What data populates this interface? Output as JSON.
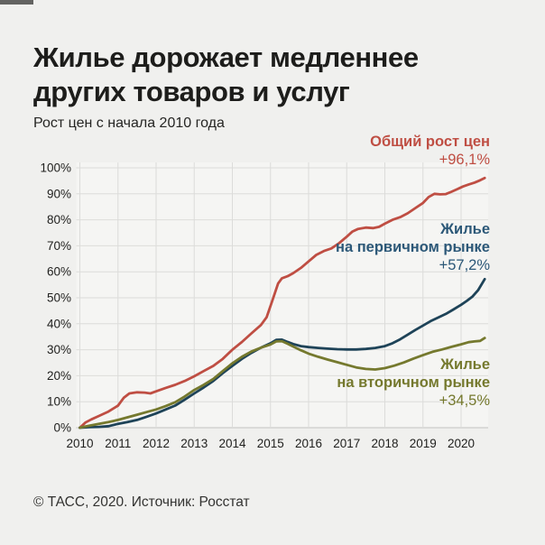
{
  "page": {
    "title_line1": "Жилье дорожает медленнее",
    "title_line2": "других товаров и услуг",
    "subtitle": "Рост цен с начала 2010 года",
    "footer": "© ТАСС, 2020. Источник: Росстат"
  },
  "colors": {
    "background": "#f0f0ee",
    "plot_background": "#f5f5f3",
    "gridline": "#dcdcda",
    "axis_line": "#c2c2c0",
    "tick_text": "#1f1f1d",
    "title_text": "#1d1d1b",
    "overall": "#bf4e43",
    "primary_line": "#1e4358",
    "primary_text": "#2c5878",
    "secondary": "#75792e"
  },
  "legend": {
    "overall": {
      "title": "Общий рост цен",
      "value": "+96,1%"
    },
    "primary": {
      "line1": "Жилье",
      "line2": "на первичном рынке",
      "value": "+57,2%"
    },
    "secondary": {
      "line1": "Жилье",
      "line2": "на вторичном рынке",
      "value": "+34,5%"
    }
  },
  "chart_data": {
    "type": "line",
    "title": "Рост цен с начала 2010 года",
    "xlabel": "",
    "ylabel": "",
    "x_range": [
      2010,
      2020.8
    ],
    "ylim": [
      0,
      100
    ],
    "grid": true,
    "legend_position": "right-inside",
    "x_ticks": [
      2010,
      2011,
      2012,
      2013,
      2014,
      2015,
      2016,
      2017,
      2018,
      2019,
      2020
    ],
    "y_ticks": [
      0,
      10,
      20,
      30,
      40,
      50,
      60,
      70,
      80,
      90,
      100
    ],
    "y_tick_suffix": "%",
    "series": [
      {
        "id": "overall",
        "name": "Общий рост цен",
        "final_value_label": "+96,1%",
        "final_value": 96.1,
        "color": "#bf4e43",
        "points": [
          [
            2010.0,
            0
          ],
          [
            2010.15,
            2.0
          ],
          [
            2010.3,
            3.2
          ],
          [
            2010.5,
            4.5
          ],
          [
            2010.75,
            6.2
          ],
          [
            2011.0,
            8.5
          ],
          [
            2011.15,
            11.5
          ],
          [
            2011.3,
            13.2
          ],
          [
            2011.5,
            13.6
          ],
          [
            2011.7,
            13.5
          ],
          [
            2011.85,
            13.2
          ],
          [
            2012.0,
            14.0
          ],
          [
            2012.25,
            15.3
          ],
          [
            2012.5,
            16.5
          ],
          [
            2012.75,
            18.0
          ],
          [
            2013.0,
            19.8
          ],
          [
            2013.25,
            21.8
          ],
          [
            2013.5,
            23.8
          ],
          [
            2013.75,
            26.5
          ],
          [
            2014.0,
            30.0
          ],
          [
            2014.25,
            33.0
          ],
          [
            2014.5,
            36.3
          ],
          [
            2014.75,
            39.5
          ],
          [
            2014.9,
            42.5
          ],
          [
            2015.05,
            49.0
          ],
          [
            2015.2,
            55.5
          ],
          [
            2015.3,
            57.5
          ],
          [
            2015.45,
            58.3
          ],
          [
            2015.6,
            59.5
          ],
          [
            2015.8,
            61.5
          ],
          [
            2016.0,
            64.0
          ],
          [
            2016.2,
            66.5
          ],
          [
            2016.4,
            68.0
          ],
          [
            2016.6,
            69.0
          ],
          [
            2016.8,
            71.0
          ],
          [
            2017.0,
            73.5
          ],
          [
            2017.15,
            75.5
          ],
          [
            2017.3,
            76.5
          ],
          [
            2017.5,
            77.0
          ],
          [
            2017.7,
            76.8
          ],
          [
            2017.85,
            77.3
          ],
          [
            2018.0,
            78.5
          ],
          [
            2018.2,
            80.0
          ],
          [
            2018.4,
            81.0
          ],
          [
            2018.6,
            82.5
          ],
          [
            2018.8,
            84.5
          ],
          [
            2019.0,
            86.5
          ],
          [
            2019.15,
            88.8
          ],
          [
            2019.3,
            90.0
          ],
          [
            2019.45,
            89.8
          ],
          [
            2019.6,
            89.9
          ],
          [
            2019.75,
            90.8
          ],
          [
            2019.9,
            91.8
          ],
          [
            2020.05,
            92.8
          ],
          [
            2020.2,
            93.6
          ],
          [
            2020.35,
            94.3
          ],
          [
            2020.5,
            95.2
          ],
          [
            2020.62,
            96.1
          ]
        ]
      },
      {
        "id": "primary",
        "name": "Жилье на первичном рынке",
        "final_value_label": "+57,2%",
        "final_value": 57.2,
        "color": "#1e4358",
        "points": [
          [
            2010.0,
            0
          ],
          [
            2010.25,
            0.2
          ],
          [
            2010.5,
            0.3
          ],
          [
            2010.75,
            0.6
          ],
          [
            2011.0,
            1.5
          ],
          [
            2011.25,
            2.2
          ],
          [
            2011.5,
            3.0
          ],
          [
            2011.75,
            4.2
          ],
          [
            2012.0,
            5.5
          ],
          [
            2012.25,
            7.0
          ],
          [
            2012.5,
            8.5
          ],
          [
            2012.75,
            10.8
          ],
          [
            2013.0,
            13.2
          ],
          [
            2013.25,
            15.5
          ],
          [
            2013.5,
            18.0
          ],
          [
            2013.75,
            21.0
          ],
          [
            2014.0,
            23.8
          ],
          [
            2014.25,
            26.5
          ],
          [
            2014.5,
            28.8
          ],
          [
            2014.75,
            30.8
          ],
          [
            2015.0,
            32.5
          ],
          [
            2015.15,
            33.8
          ],
          [
            2015.3,
            33.9
          ],
          [
            2015.45,
            33.0
          ],
          [
            2015.6,
            32.2
          ],
          [
            2015.8,
            31.4
          ],
          [
            2016.0,
            31.0
          ],
          [
            2016.25,
            30.7
          ],
          [
            2016.5,
            30.4
          ],
          [
            2016.75,
            30.2
          ],
          [
            2017.0,
            30.1
          ],
          [
            2017.25,
            30.1
          ],
          [
            2017.5,
            30.3
          ],
          [
            2017.75,
            30.7
          ],
          [
            2018.0,
            31.4
          ],
          [
            2018.2,
            32.5
          ],
          [
            2018.4,
            34.0
          ],
          [
            2018.6,
            35.8
          ],
          [
            2018.8,
            37.6
          ],
          [
            2019.0,
            39.3
          ],
          [
            2019.2,
            41.0
          ],
          [
            2019.4,
            42.4
          ],
          [
            2019.6,
            43.8
          ],
          [
            2019.8,
            45.5
          ],
          [
            2020.0,
            47.3
          ],
          [
            2020.15,
            48.8
          ],
          [
            2020.3,
            50.5
          ],
          [
            2020.45,
            53.0
          ],
          [
            2020.62,
            57.2
          ]
        ]
      },
      {
        "id": "secondary",
        "name": "Жилье на вторичном рынке",
        "final_value_label": "+34,5%",
        "final_value": 34.5,
        "color": "#75792e",
        "points": [
          [
            2010.0,
            0
          ],
          [
            2010.25,
            0.8
          ],
          [
            2010.5,
            1.5
          ],
          [
            2010.75,
            2.2
          ],
          [
            2011.0,
            3.0
          ],
          [
            2011.25,
            4.0
          ],
          [
            2011.5,
            5.0
          ],
          [
            2011.75,
            6.0
          ],
          [
            2012.0,
            7.0
          ],
          [
            2012.25,
            8.3
          ],
          [
            2012.5,
            9.8
          ],
          [
            2012.75,
            12.0
          ],
          [
            2013.0,
            14.5
          ],
          [
            2013.25,
            16.5
          ],
          [
            2013.5,
            18.8
          ],
          [
            2013.75,
            21.8
          ],
          [
            2014.0,
            24.8
          ],
          [
            2014.25,
            27.3
          ],
          [
            2014.5,
            29.3
          ],
          [
            2014.75,
            30.8
          ],
          [
            2015.0,
            32.0
          ],
          [
            2015.15,
            33.2
          ],
          [
            2015.3,
            33.3
          ],
          [
            2015.45,
            32.3
          ],
          [
            2015.6,
            31.2
          ],
          [
            2015.8,
            29.8
          ],
          [
            2016.0,
            28.5
          ],
          [
            2016.25,
            27.3
          ],
          [
            2016.5,
            26.2
          ],
          [
            2016.75,
            25.2
          ],
          [
            2017.0,
            24.2
          ],
          [
            2017.25,
            23.2
          ],
          [
            2017.5,
            22.6
          ],
          [
            2017.75,
            22.4
          ],
          [
            2018.0,
            22.9
          ],
          [
            2018.25,
            23.9
          ],
          [
            2018.5,
            25.1
          ],
          [
            2018.75,
            26.6
          ],
          [
            2019.0,
            27.9
          ],
          [
            2019.25,
            29.2
          ],
          [
            2019.5,
            30.1
          ],
          [
            2019.75,
            31.1
          ],
          [
            2020.0,
            32.1
          ],
          [
            2020.2,
            32.9
          ],
          [
            2020.35,
            33.2
          ],
          [
            2020.5,
            33.4
          ],
          [
            2020.62,
            34.5
          ]
        ]
      }
    ]
  }
}
